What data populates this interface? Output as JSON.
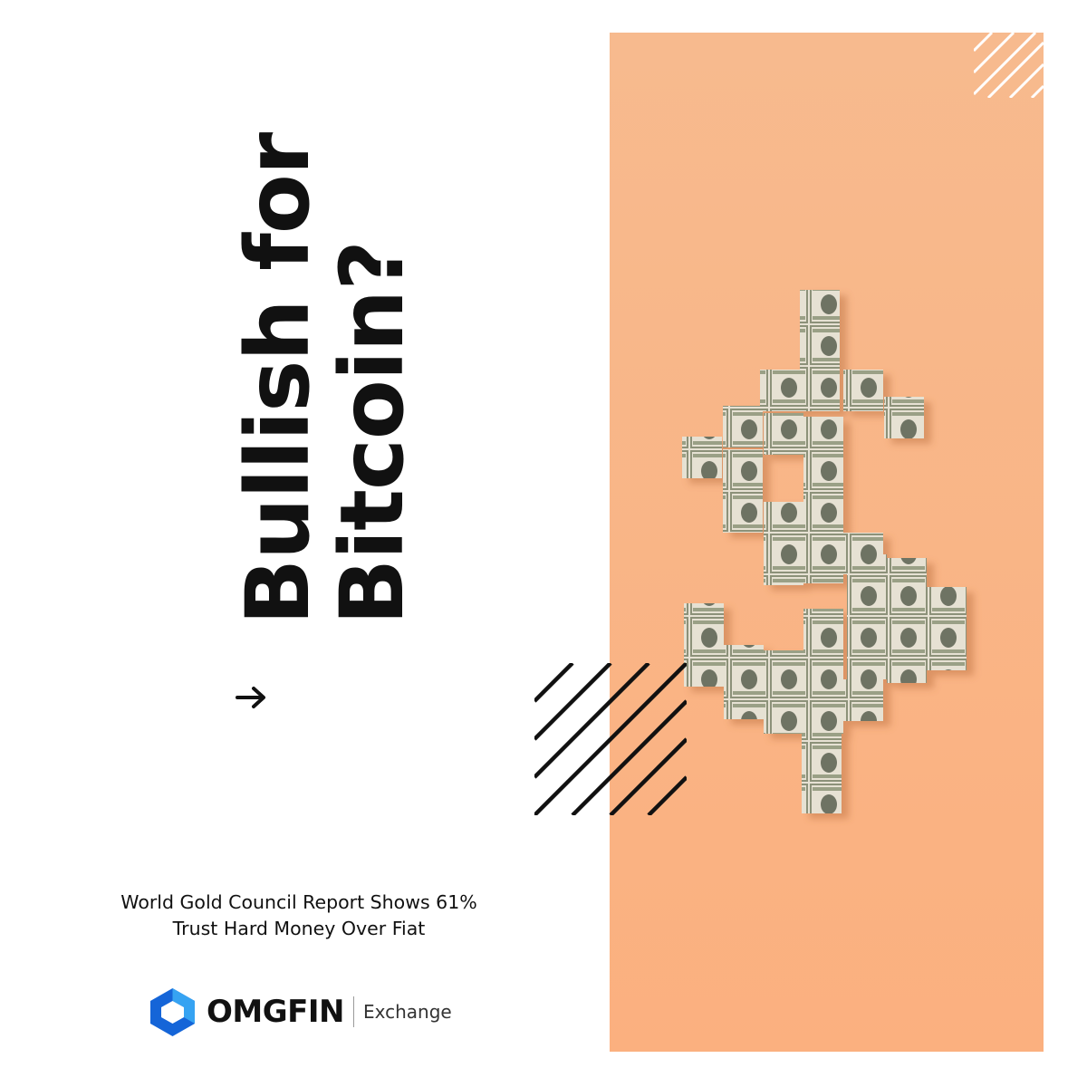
{
  "headline": {
    "line1": "Bullish for",
    "line2": "Bitcoin?"
  },
  "subtitle": {
    "line1": "World Gold Council Report Shows 61%",
    "line2": "Trust Hard Money Over Fiat"
  },
  "brand": {
    "name": "OMGFIN",
    "sub": "Exchange"
  },
  "colors": {
    "panel": "#f8b489",
    "text": "#111111",
    "logo_dark": "#1565d8",
    "logo_light": "#36a3f2"
  },
  "icons": {
    "arrow": "arrow-right-icon",
    "logo": "omgfin-logo-icon",
    "image": "dollar-sign-made-of-banknotes"
  }
}
